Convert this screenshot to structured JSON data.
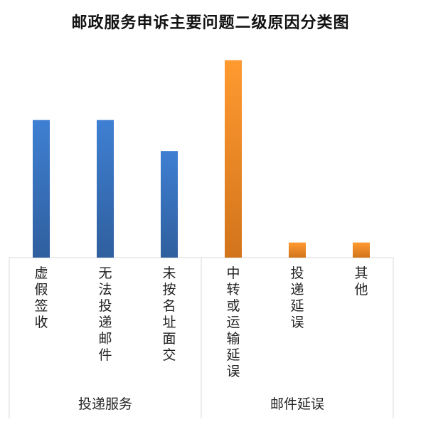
{
  "chart_data": {
    "type": "bar",
    "title": "邮政服务申诉主要问题二级原因分类图",
    "categories": [
      "虚假签收",
      "无法投递邮件",
      "未按名址面交",
      "中转或运输延误",
      "投递延误",
      "其他"
    ],
    "groups": [
      {
        "label": "投递服务",
        "categories": [
          "虚假签收",
          "无法投递邮件",
          "未按名址面交"
        ],
        "color": "#3b79c9"
      },
      {
        "label": "邮件延误",
        "categories": [
          "中转或运输延误",
          "投递延误",
          "其他"
        ],
        "color": "#f28e2b"
      }
    ],
    "series": [
      {
        "values": [
          200,
          200,
          155,
          287,
          22,
          22
        ]
      }
    ],
    "ylim": [
      0,
      300
    ],
    "grid": false,
    "legend": "none",
    "xlabel": "",
    "ylabel": ""
  }
}
